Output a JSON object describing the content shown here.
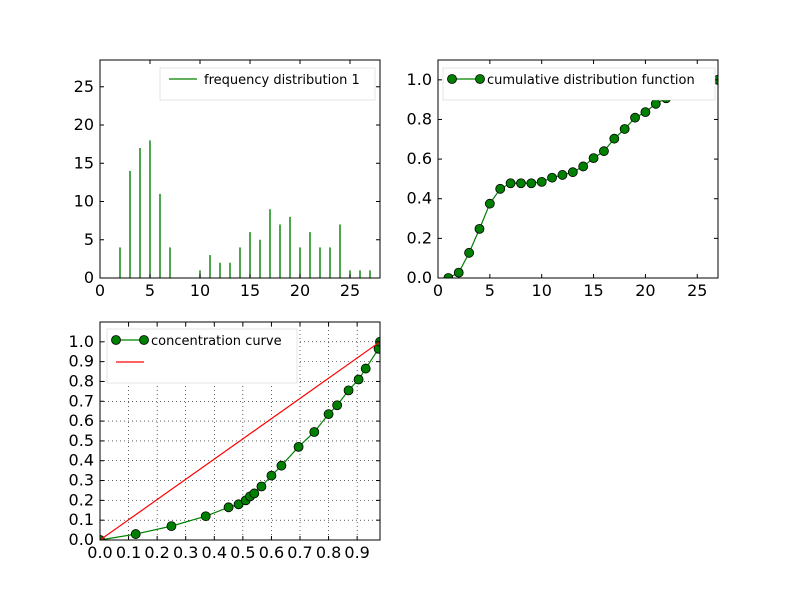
{
  "figure": {
    "background": "#ffffff",
    "line_color": "#008000",
    "marker_color": "#008000",
    "reference_line_color": "#ff0000"
  },
  "chart_data": [
    {
      "type": "bar",
      "title": "",
      "xlabel": "",
      "ylabel": "",
      "xlim": [
        0,
        28
      ],
      "ylim": [
        0,
        28.5
      ],
      "xticks": [
        0,
        5,
        10,
        15,
        20,
        25
      ],
      "yticks": [
        0,
        5,
        10,
        15,
        20,
        25
      ],
      "grid": false,
      "legend_position": "top-right",
      "series": [
        {
          "name": "frequency distribution 1",
          "style": "vertical-lines",
          "x": [
            1,
            2,
            3,
            4,
            5,
            6,
            7,
            8,
            9,
            10,
            11,
            12,
            13,
            14,
            15,
            16,
            17,
            18,
            19,
            20,
            21,
            22,
            23,
            24,
            25,
            26,
            27
          ],
          "values": [
            0,
            4,
            14,
            17,
            18,
            11,
            4,
            0,
            0,
            1,
            3,
            2,
            2,
            4,
            6,
            5,
            9,
            7,
            8,
            4,
            6,
            4,
            4,
            7,
            1,
            1,
            1
          ]
        }
      ]
    },
    {
      "type": "line",
      "title": "",
      "xlabel": "",
      "ylabel": "",
      "xlim": [
        0,
        27
      ],
      "ylim": [
        0,
        1.1
      ],
      "xticks": [
        0,
        5,
        10,
        15,
        20,
        25
      ],
      "yticks": [
        0.0,
        0.2,
        0.4,
        0.6,
        0.8,
        1.0
      ],
      "grid": false,
      "legend_position": "top-right",
      "series": [
        {
          "name": "cumulative distribution function",
          "marker": "circle",
          "x": [
            1,
            2,
            3,
            4,
            5,
            6,
            7,
            8,
            9,
            10,
            11,
            12,
            13,
            14,
            15,
            16,
            17,
            18,
            19,
            20,
            21,
            22,
            23,
            24,
            25,
            26,
            27
          ],
          "y": [
            0.0,
            0.027,
            0.127,
            0.248,
            0.375,
            0.45,
            0.478,
            0.478,
            0.478,
            0.485,
            0.506,
            0.52,
            0.534,
            0.563,
            0.605,
            0.64,
            0.703,
            0.752,
            0.809,
            0.837,
            0.879,
            0.907,
            0.936,
            0.985,
            0.985,
            0.993,
            1.0
          ]
        }
      ]
    },
    {
      "type": "line",
      "title": "",
      "xlabel": "",
      "ylabel": "",
      "xlim": [
        0,
        0.98
      ],
      "ylim": [
        0,
        1.1
      ],
      "xticks": [
        0.0,
        0.1,
        0.2,
        0.3,
        0.4,
        0.5,
        0.6,
        0.7,
        0.8,
        0.9
      ],
      "yticks": [
        0.0,
        0.1,
        0.2,
        0.3,
        0.4,
        0.5,
        0.6,
        0.7,
        0.8,
        0.9,
        1.0
      ],
      "grid": true,
      "legend_position": "top-left",
      "series": [
        {
          "name": "concentration curve",
          "marker": "circle",
          "x": [
            0.0,
            0.0,
            0.125,
            0.25,
            0.37,
            0.45,
            0.485,
            0.51,
            0.525,
            0.54,
            0.565,
            0.6,
            0.635,
            0.695,
            0.75,
            0.8,
            0.83,
            0.87,
            0.905,
            0.93,
            0.975,
            0.98
          ],
          "y": [
            0.0,
            0.0,
            0.03,
            0.07,
            0.12,
            0.165,
            0.18,
            0.2,
            0.22,
            0.235,
            0.27,
            0.325,
            0.375,
            0.47,
            0.545,
            0.635,
            0.68,
            0.755,
            0.81,
            0.865,
            0.965,
            1.0
          ]
        },
        {
          "name": "",
          "marker": "none",
          "x": [
            0.0,
            0.98
          ],
          "y": [
            0.0,
            1.0
          ]
        }
      ]
    }
  ]
}
